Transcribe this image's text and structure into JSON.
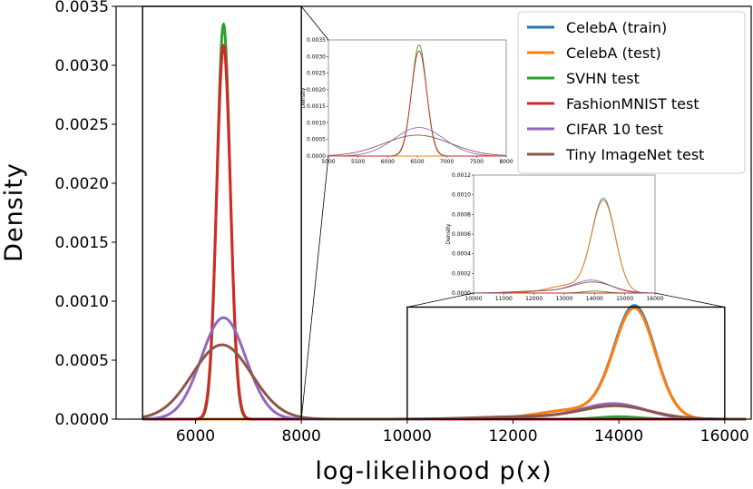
{
  "chart_data": {
    "type": "line",
    "title": "",
    "xlabel": "log-likelihood p(x)",
    "ylabel": "Density",
    "xlim": [
      4500,
      16500
    ],
    "ylim": [
      0,
      0.0035
    ],
    "xticks": [
      "6000",
      "8000",
      "10000",
      "12000",
      "14000",
      "16000"
    ],
    "yticks": [
      "0.0000",
      "0.0005",
      "0.0010",
      "0.0015",
      "0.0020",
      "0.0025",
      "0.0030",
      "0.0035"
    ],
    "grid": false,
    "legend_position": "top-right",
    "series": [
      {
        "name": "CelebA (train)",
        "color": "#1f77b4",
        "components": [
          {
            "mu": 14300,
            "sigma": 390,
            "amp": 0.00094
          },
          {
            "mu": 13200,
            "sigma": 700,
            "amp": 8e-05
          }
        ]
      },
      {
        "name": "CelebA (test)",
        "color": "#ff7f0e",
        "components": [
          {
            "mu": 14300,
            "sigma": 390,
            "amp": 0.00092
          },
          {
            "mu": 13200,
            "sigma": 700,
            "amp": 8e-05
          }
        ]
      },
      {
        "name": "SVHN test",
        "color": "#2ca02c",
        "components": [
          {
            "mu": 6530,
            "sigma": 125,
            "amp": 0.00335
          },
          {
            "mu": 14000,
            "sigma": 380,
            "amp": 2e-05
          }
        ]
      },
      {
        "name": "FashionMNIST test",
        "color": "#d62728",
        "components": [
          {
            "mu": 6530,
            "sigma": 130,
            "amp": 0.00317
          }
        ]
      },
      {
        "name": "CIFAR 10 test",
        "color": "#9467bd",
        "components": [
          {
            "mu": 6530,
            "sigma": 420,
            "amp": 0.00086
          },
          {
            "mu": 13900,
            "sigma": 600,
            "amp": 0.00013
          },
          {
            "mu": 12200,
            "sigma": 800,
            "amp": 2e-05
          }
        ]
      },
      {
        "name": "Tiny ImageNet test",
        "color": "#8c564b",
        "components": [
          {
            "mu": 6500,
            "sigma": 560,
            "amp": 0.00063
          },
          {
            "mu": 13950,
            "sigma": 650,
            "amp": 0.00011
          },
          {
            "mu": 12200,
            "sigma": 900,
            "amp": 2e-05
          }
        ]
      }
    ],
    "zoom_regions": [
      {
        "x": [
          5000,
          8000
        ],
        "y": [
          0,
          0.0035
        ]
      },
      {
        "x": [
          10000,
          16000
        ],
        "y": [
          0,
          0.00095
        ]
      }
    ],
    "insets": [
      {
        "ylabel": "Density",
        "xlim": [
          5000,
          8000
        ],
        "ylim": [
          0,
          0.0035
        ],
        "xticks": [
          "5000",
          "5500",
          "6000",
          "6500",
          "7000",
          "7500",
          "8000"
        ],
        "yticks": [
          "0.0000",
          "0.0005",
          "0.0010",
          "0.0015",
          "0.0020",
          "0.0025",
          "0.0030",
          "0.0035"
        ]
      },
      {
        "ylabel": "Density",
        "xlim": [
          10000,
          16000
        ],
        "ylim": [
          0,
          0.0012
        ],
        "xticks": [
          "10000",
          "11000",
          "12000",
          "13000",
          "14000",
          "15000",
          "16000"
        ],
        "yticks": [
          "0.0000",
          "0.0002",
          "0.0004",
          "0.0006",
          "0.0008",
          "0.0010",
          "0.0012"
        ]
      }
    ]
  }
}
